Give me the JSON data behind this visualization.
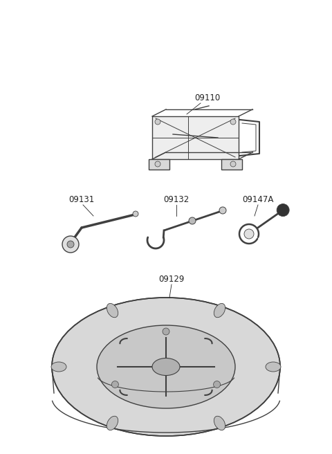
{
  "bg_color": "#ffffff",
  "line_color": "#404040",
  "label_color": "#222222",
  "figsize": [
    4.8,
    6.56
  ],
  "dpi": 100,
  "font_size": 8.5,
  "font_family": "DejaVu Sans"
}
